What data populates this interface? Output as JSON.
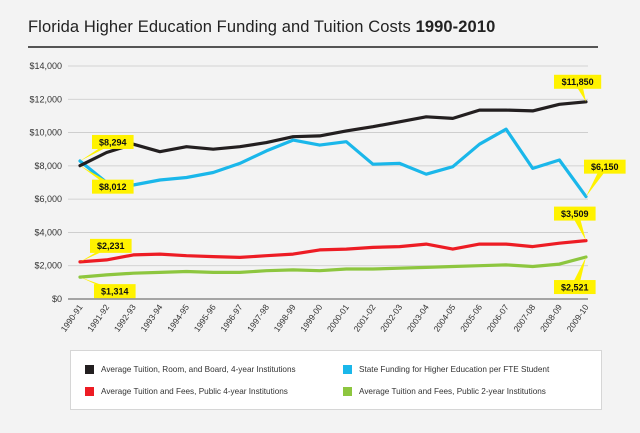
{
  "title": {
    "main": "Florida Higher Education Funding and Tuition Costs",
    "years": "1990-2010"
  },
  "chart_data": {
    "type": "line",
    "categories": [
      "1990-91",
      "1991-92",
      "1992-93",
      "1993-94",
      "1994-95",
      "1995-96",
      "1996-97",
      "1997-98",
      "1998-99",
      "1999-00",
      "2000-01",
      "2001-02",
      "2002-03",
      "2003-04",
      "2004-05",
      "2005-06",
      "2006-07",
      "2007-08",
      "2008-09",
      "2009-10"
    ],
    "ylim": [
      0,
      14000
    ],
    "yticks": [
      0,
      2000,
      4000,
      6000,
      8000,
      10000,
      12000,
      14000
    ],
    "ytick_labels": [
      "$0",
      "$2,000",
      "$4,000",
      "$6,000",
      "$8,000",
      "$10,000",
      "$12,000",
      "$14,000"
    ],
    "grid": true,
    "legend_position": "bottom",
    "series": [
      {
        "name": "Average Tuition, Room, and Board, 4-year Institutions",
        "color": "#231f20",
        "values": [
          8012,
          8800,
          9300,
          8850,
          9150,
          9000,
          9150,
          9400,
          9750,
          9800,
          10100,
          10350,
          10650,
          10950,
          10850,
          11350,
          11350,
          11300,
          11700,
          11850
        ]
      },
      {
        "name": "State Funding for Higher Education per FTE Student",
        "color": "#1ab7ea",
        "values": [
          8294,
          7000,
          6850,
          7150,
          7300,
          7600,
          8150,
          8900,
          9550,
          9250,
          9450,
          8100,
          8150,
          7500,
          7950,
          9300,
          10200,
          7850,
          8350,
          6150
        ]
      },
      {
        "name": "Average Tuition and Fees, Public 4-year Institutions",
        "color": "#ed1c24",
        "values": [
          2231,
          2350,
          2650,
          2700,
          2600,
          2550,
          2500,
          2600,
          2700,
          2950,
          3000,
          3100,
          3150,
          3300,
          3000,
          3300,
          3300,
          3150,
          3350,
          3509
        ]
      },
      {
        "name": "Average Tuition and Fees, Public 2-year Institutions",
        "color": "#8dc63f",
        "values": [
          1314,
          1450,
          1550,
          1600,
          1650,
          1600,
          1600,
          1700,
          1750,
          1700,
          1800,
          1800,
          1850,
          1900,
          1950,
          2000,
          2050,
          1950,
          2100,
          2521
        ]
      }
    ],
    "annotations": [
      {
        "text": "$8,294",
        "series": 1,
        "index": 0
      },
      {
        "text": "$8,012",
        "series": 0,
        "index": 0
      },
      {
        "text": "$2,231",
        "series": 2,
        "index": 0
      },
      {
        "text": "$1,314",
        "series": 3,
        "index": 0
      },
      {
        "text": "$11,850",
        "series": 0,
        "index": 19
      },
      {
        "text": "$6,150",
        "series": 1,
        "index": 19
      },
      {
        "text": "$3,509",
        "series": 2,
        "index": 19
      },
      {
        "text": "$2,521",
        "series": 3,
        "index": 19
      }
    ]
  },
  "legend": {
    "items": [
      {
        "label": "Average Tuition, Room, and Board, 4-year Institutions",
        "color": "#231f20"
      },
      {
        "label": "State Funding for Higher Education per FTE Student",
        "color": "#1ab7ea"
      },
      {
        "label": "Average Tuition and Fees, Public 4-year Institutions",
        "color": "#ed1c24"
      },
      {
        "label": "Average Tuition and Fees, Public 2-year Institutions",
        "color": "#8dc63f"
      }
    ]
  },
  "callout_color": "#fff200"
}
